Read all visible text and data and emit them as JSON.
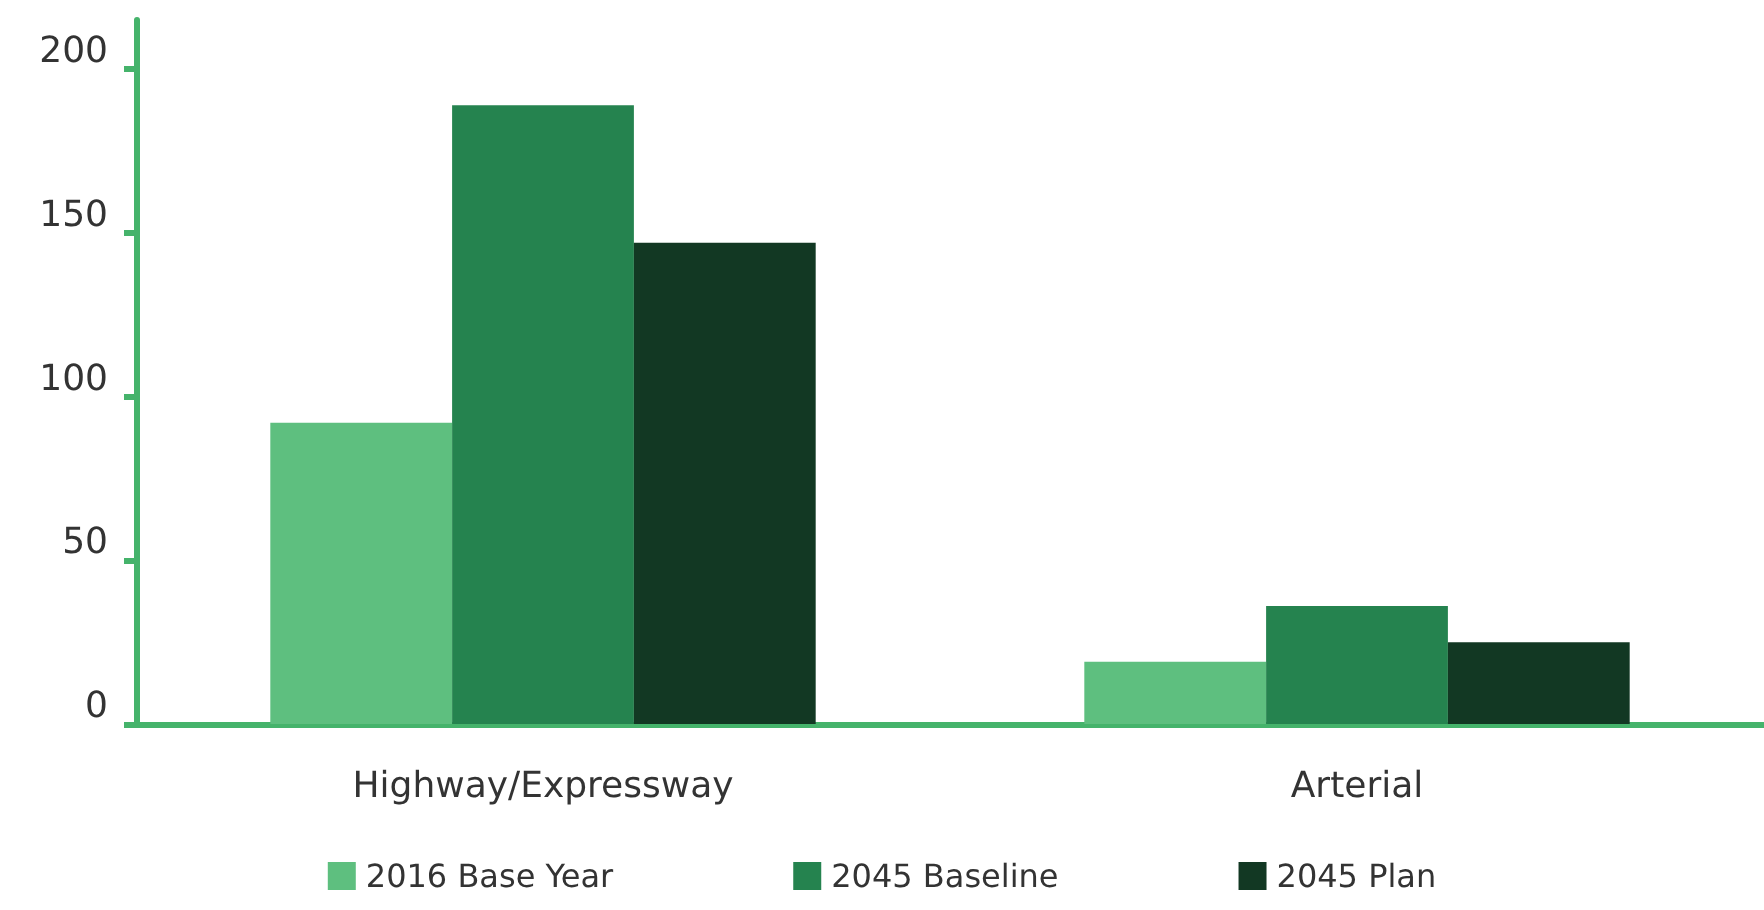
{
  "chart_data": {
    "type": "bar",
    "categories": [
      "Highway/Expressway",
      "Arterial"
    ],
    "series": [
      {
        "name": "2016 Base Year",
        "color": "#5ebf7f",
        "values": [
          92,
          19
        ]
      },
      {
        "name": "2045 Baseline",
        "color": "#25834f",
        "values": [
          189,
          36
        ]
      },
      {
        "name": "2045 Plan",
        "color": "#123823",
        "values": [
          147,
          25
        ]
      }
    ],
    "ylim": [
      0,
      215
    ],
    "yticks": [
      0,
      50,
      100,
      150,
      200
    ],
    "grid": false,
    "legend": "bottom"
  }
}
